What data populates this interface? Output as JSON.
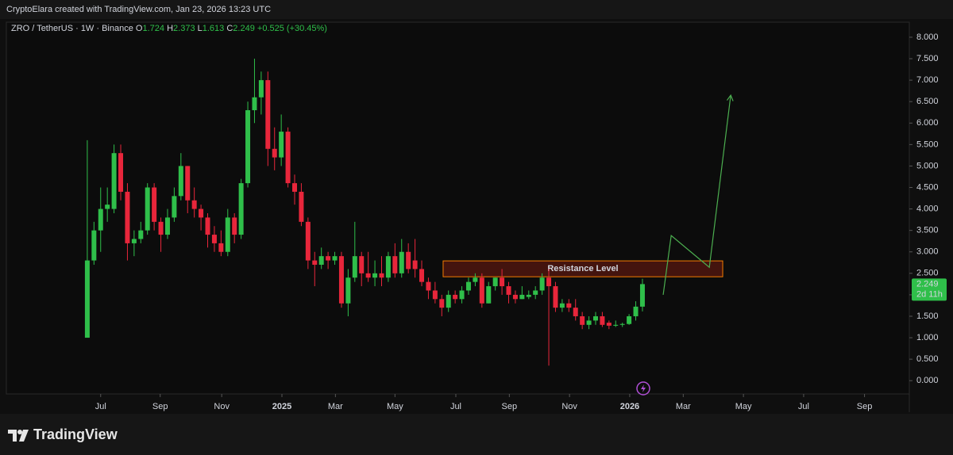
{
  "header": "CryptoElara created with TradingView.com, Jan 23, 2026 13:23 UTC",
  "footer": "TradingView",
  "chart_data": {
    "type": "candlestick",
    "symbol": "ZRO / TetherUS · 1W · Binance",
    "ohlc_labels": [
      "O",
      "H",
      "L",
      "C"
    ],
    "change": {
      "value": 0.525,
      "label": "+0.525"
    },
    "change_percent": {
      "value": 30.45,
      "label": "(+30.45%)"
    },
    "countdown": "2d 11h",
    "up_color": "#2fbf4a",
    "down_color": "#e8263b",
    "open": [
      1.0,
      2.8,
      3.5,
      4.0,
      4.0,
      5.3,
      4.4,
      3.2,
      3.3,
      3.5,
      4.5,
      3.7,
      3.4,
      3.8,
      4.3,
      5.0,
      4.2,
      4.0,
      3.8,
      3.4,
      3.2,
      3.0,
      3.8,
      3.4,
      4.6,
      6.3,
      6.6,
      7.0,
      5.4,
      5.2,
      5.8,
      4.6,
      4.4,
      3.7,
      2.8,
      2.7,
      2.9,
      2.8,
      2.9,
      1.8,
      2.4,
      2.9,
      2.5,
      2.4,
      2.5,
      2.4,
      2.9,
      2.5,
      3.0,
      2.8,
      2.6,
      2.3,
      2.1,
      1.9,
      1.7,
      2.0,
      1.9,
      2.1,
      2.3,
      2.4,
      1.8,
      2.2,
      2.4,
      2.2,
      2.0,
      1.9,
      1.95,
      2.0,
      2.1,
      2.4,
      2.2,
      1.7,
      1.8,
      1.7,
      1.5,
      1.3,
      1.4,
      1.5,
      1.35,
      1.28,
      1.3,
      1.32,
      1.5,
      1.724
    ],
    "high": [
      5.6,
      3.7,
      4.5,
      4.5,
      5.5,
      5.5,
      4.6,
      3.5,
      3.7,
      4.6,
      4.6,
      3.8,
      4.0,
      4.5,
      5.3,
      5.0,
      4.5,
      4.1,
      3.9,
      3.6,
      3.5,
      4.0,
      3.9,
      4.7,
      6.5,
      7.5,
      7.2,
      7.2,
      5.9,
      6.2,
      5.9,
      4.8,
      4.6,
      3.8,
      3.0,
      3.1,
      3.0,
      3.0,
      3.0,
      2.6,
      3.7,
      3.0,
      3.0,
      2.8,
      2.9,
      3.0,
      3.2,
      3.3,
      3.2,
      3.3,
      2.8,
      2.4,
      2.3,
      2.0,
      2.1,
      2.1,
      2.2,
      2.4,
      2.5,
      2.5,
      2.3,
      2.4,
      2.6,
      2.3,
      2.1,
      2.2,
      2.1,
      2.2,
      2.5,
      2.6,
      2.3,
      1.9,
      1.9,
      1.9,
      1.6,
      1.5,
      1.6,
      1.6,
      1.4,
      1.4,
      1.35,
      1.55,
      1.85,
      2.373
    ],
    "low": [
      1.0,
      2.7,
      3.0,
      3.7,
      3.9,
      4.2,
      2.8,
      2.9,
      3.2,
      3.4,
      3.5,
      3.0,
      3.3,
      3.7,
      4.2,
      3.9,
      3.8,
      3.5,
      3.1,
      3.0,
      2.9,
      2.9,
      3.2,
      3.3,
      4.5,
      6.0,
      6.2,
      5.0,
      4.9,
      5.0,
      4.5,
      4.1,
      3.6,
      2.6,
      2.2,
      2.6,
      2.6,
      2.7,
      1.7,
      1.5,
      2.3,
      2.2,
      2.3,
      2.2,
      2.2,
      2.3,
      2.4,
      2.4,
      2.5,
      2.4,
      2.2,
      1.9,
      1.8,
      1.5,
      1.6,
      1.8,
      1.8,
      2.0,
      2.2,
      1.7,
      1.8,
      2.1,
      2.0,
      1.8,
      1.8,
      1.9,
      1.9,
      1.9,
      2.0,
      0.35,
      1.6,
      1.6,
      1.6,
      1.4,
      1.2,
      1.2,
      1.3,
      1.25,
      1.2,
      1.25,
      1.25,
      1.3,
      1.4,
      1.613
    ],
    "close": [
      2.8,
      3.5,
      4.0,
      4.1,
      5.3,
      4.4,
      3.2,
      3.3,
      3.5,
      4.5,
      3.7,
      3.4,
      3.8,
      4.3,
      5.0,
      4.2,
      4.0,
      3.8,
      3.4,
      3.2,
      3.0,
      3.8,
      3.4,
      4.6,
      6.3,
      6.6,
      7.0,
      5.4,
      5.2,
      5.8,
      4.6,
      4.4,
      3.7,
      2.8,
      2.7,
      2.9,
      2.8,
      2.9,
      1.8,
      2.4,
      2.9,
      2.5,
      2.4,
      2.5,
      2.4,
      2.9,
      2.5,
      3.0,
      2.6,
      2.6,
      2.3,
      2.1,
      1.9,
      1.7,
      2.0,
      1.9,
      2.1,
      2.3,
      2.4,
      1.8,
      2.2,
      2.4,
      2.2,
      2.0,
      1.9,
      2.0,
      2.0,
      2.1,
      2.4,
      2.2,
      1.7,
      1.8,
      1.7,
      1.5,
      1.3,
      1.4,
      1.5,
      1.3,
      1.28,
      1.3,
      1.32,
      1.5,
      1.724,
      2.249
    ],
    "xlim": [
      -12.1,
      122.9
    ],
    "xticks": [
      {
        "value": 2.0,
        "label": "Jul"
      },
      {
        "value": 10.9,
        "label": "Sep"
      },
      {
        "value": 20.1,
        "label": "Nov"
      },
      {
        "value": 29.1,
        "label": "2025"
      },
      {
        "value": 37.1,
        "label": "Mar"
      },
      {
        "value": 46.0,
        "label": "May"
      },
      {
        "value": 55.1,
        "label": "Jul"
      },
      {
        "value": 63.1,
        "label": "Sep"
      },
      {
        "value": 72.1,
        "label": "Nov"
      },
      {
        "value": 81.1,
        "label": "2026"
      },
      {
        "value": 89.1,
        "label": "Mar"
      },
      {
        "value": 98.1,
        "label": "May"
      },
      {
        "value": 107.1,
        "label": "Jul"
      },
      {
        "value": 116.2,
        "label": "Sep"
      }
    ],
    "ylim": [
      -0.31,
      8.35
    ],
    "yticks": [
      {
        "value": 0,
        "label": "0.000"
      },
      {
        "value": 0.5,
        "label": "0.500"
      },
      {
        "value": 1,
        "label": "1.000"
      },
      {
        "value": 1.5,
        "label": "1.500"
      },
      {
        "value": 2,
        "label": "2.000"
      },
      {
        "value": 2.5,
        "label": "2.500"
      },
      {
        "value": 3,
        "label": "3.000"
      },
      {
        "value": 3.5,
        "label": "3.500"
      },
      {
        "value": 4,
        "label": "4.000"
      },
      {
        "value": 4.5,
        "label": "4.500"
      },
      {
        "value": 5,
        "label": "5.000"
      },
      {
        "value": 5.5,
        "label": "5.500"
      },
      {
        "value": 6,
        "label": "6.000"
      },
      {
        "value": 6.5,
        "label": "6.500"
      },
      {
        "value": 7,
        "label": "7.000"
      },
      {
        "value": 7.5,
        "label": "7.500"
      },
      {
        "value": 8,
        "label": "8.000"
      }
    ],
    "resistance": {
      "label": "Resistance Level",
      "x": [
        53.2,
        95.0
      ],
      "y": [
        2.42,
        2.79
      ],
      "color": "#f57c00"
    },
    "projection": {
      "x": [
        86.1,
        87.3,
        93.0,
        96.2
      ],
      "y": [
        2.0,
        3.38,
        2.64,
        6.65
      ],
      "color": "#4caf50"
    }
  }
}
